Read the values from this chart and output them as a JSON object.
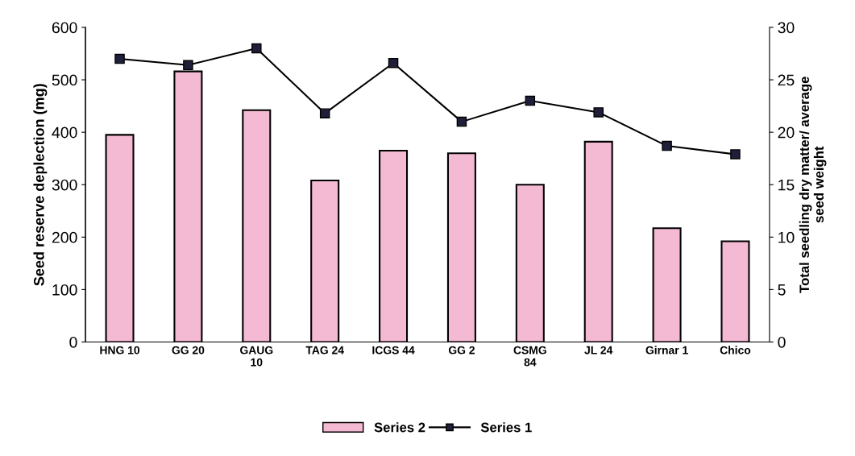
{
  "chart_data": {
    "type": "bar",
    "xlabel": null,
    "ylabel": "Seed reserve deplection (mg)",
    "y2label": "Total seedling dry matter/ average\nseed weight",
    "categories": [
      "HNG 10",
      "GG 20",
      "GAUG\n10",
      "TAG 24",
      "ICGS 44",
      "GG 2",
      "CSMG\n84",
      "JL 24",
      "Girnar 1",
      "Chico"
    ],
    "series": [
      {
        "name": "Series 2",
        "color": "#f4b9d3",
        "values": [
          395,
          516,
          442,
          308,
          365,
          360,
          300,
          382,
          217,
          192
        ]
      },
      {
        "name": "Series 1",
        "type": "line",
        "axis": "y2",
        "color": "#000000",
        "marker": "square",
        "values": [
          27.0,
          26.4,
          28.0,
          21.8,
          26.6,
          21.0,
          23.0,
          21.9,
          18.7,
          17.9
        ]
      }
    ],
    "ylim": [
      0,
      600
    ],
    "yticks": [
      0,
      100,
      200,
      300,
      400,
      500,
      600
    ],
    "y2lim": [
      0,
      30
    ],
    "y2ticks": [
      0,
      5,
      10,
      15,
      20,
      25,
      30
    ],
    "grid": false,
    "legend": "bottom"
  }
}
